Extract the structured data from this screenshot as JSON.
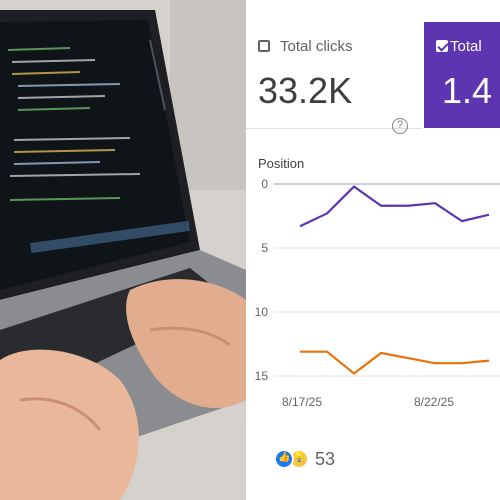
{
  "photo": {
    "icon": "laptop-typing-photo"
  },
  "metrics": {
    "clicks": {
      "label": "Total clicks",
      "value": "33.2K",
      "checked": false
    },
    "impressions": {
      "label": "Total",
      "value": "1.4",
      "checked": true
    },
    "help_icon": "help-icon"
  },
  "colors": {
    "accent": "#5e35b1",
    "impr_line": "#5e35b1",
    "pos_line": "#e8710a"
  },
  "chart_data": {
    "type": "line",
    "title": "Position",
    "x_ticks": [
      "8/17/25",
      "8/22/25"
    ],
    "y_ticks": [
      0,
      5,
      10,
      15
    ],
    "ylim": [
      0,
      15
    ],
    "grid": true,
    "series": [
      {
        "values": [
          3.3,
          2.3,
          0.2,
          1.7,
          1.7,
          1.5,
          2.9,
          2.4
        ]
      },
      {
        "values": [
          13.1,
          13.1,
          14.8,
          13.2,
          13.6,
          14.0,
          14.0,
          13.8
        ]
      }
    ]
  },
  "reactions": {
    "count": "53",
    "icons": [
      "like-icon",
      "idea-icon"
    ]
  }
}
